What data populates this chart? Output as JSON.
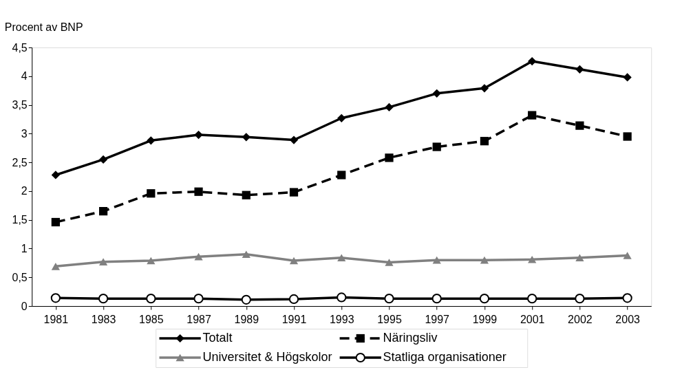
{
  "chart_data": {
    "type": "line",
    "ylabel": "Procent av BNP",
    "categories": [
      "1981",
      "1983",
      "1985",
      "1987",
      "1989",
      "1991",
      "1993",
      "1995",
      "1997",
      "1999",
      "2001",
      "2002",
      "2003"
    ],
    "series": [
      {
        "name": "Totalt",
        "color": "#000000",
        "marker": "diamond",
        "line_style": "solid",
        "values": [
          2.28,
          2.55,
          2.88,
          2.98,
          2.94,
          2.89,
          3.27,
          3.46,
          3.7,
          3.79,
          4.26,
          4.12,
          3.98
        ]
      },
      {
        "name": "Näringsliv",
        "color": "#000000",
        "marker": "square",
        "line_style": "dashed",
        "values": [
          1.46,
          1.65,
          1.96,
          1.99,
          1.93,
          1.98,
          2.28,
          2.58,
          2.77,
          2.87,
          3.32,
          3.14,
          2.95
        ]
      },
      {
        "name": "Universitet & Högskolor",
        "color": "#808080",
        "marker": "triangle",
        "line_style": "solid",
        "values": [
          0.69,
          0.77,
          0.79,
          0.86,
          0.9,
          0.79,
          0.84,
          0.76,
          0.8,
          0.8,
          0.81,
          0.84,
          0.88
        ]
      },
      {
        "name": "Statliga organisationer",
        "color": "#000000",
        "marker": "circle",
        "line_style": "solid",
        "values": [
          0.14,
          0.13,
          0.13,
          0.13,
          0.11,
          0.12,
          0.15,
          0.13,
          0.13,
          0.13,
          0.13,
          0.13,
          0.14
        ]
      }
    ],
    "ylim": [
      0,
      4.5
    ],
    "yticks": [
      0,
      {
        "value": 0.5,
        "label": "0,5"
      },
      1,
      {
        "value": 1.5,
        "label": "1,5"
      },
      2,
      {
        "value": 2.5,
        "label": "2,5"
      },
      3,
      {
        "value": 3.5,
        "label": "3,5"
      },
      4,
      {
        "value": 4.5,
        "label": "4,5"
      }
    ],
    "grid": false,
    "legend": "bottom"
  }
}
